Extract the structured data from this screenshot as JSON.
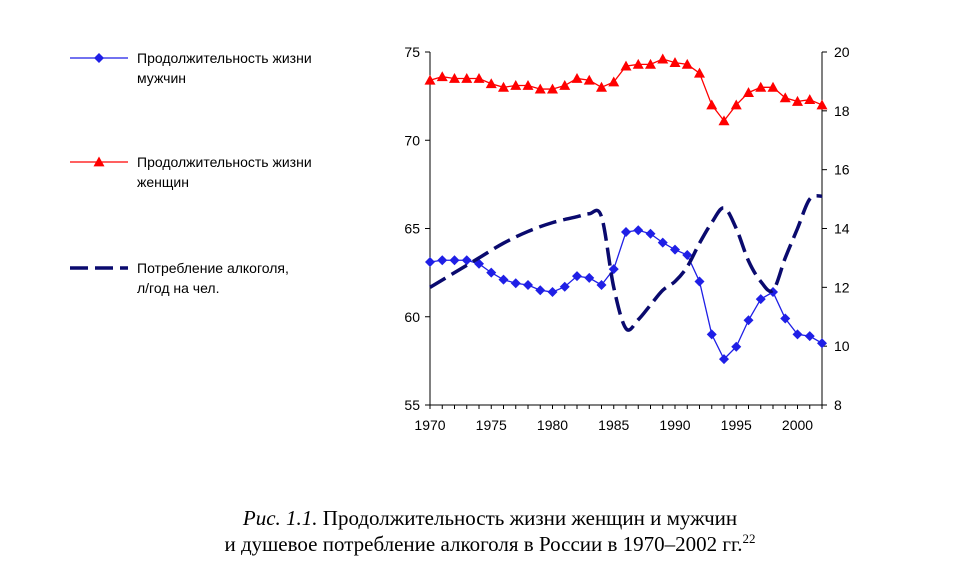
{
  "chart_data": {
    "type": "line",
    "x_ticks": [
      1970,
      1975,
      1980,
      1985,
      1990,
      1995,
      2000
    ],
    "xlim": [
      1970,
      2002
    ],
    "y_left": {
      "ticks": [
        55,
        60,
        65,
        70,
        75
      ],
      "ylim": [
        55,
        75
      ]
    },
    "y_right": {
      "ticks": [
        8,
        10,
        12,
        14,
        16,
        18,
        20
      ],
      "ylim": [
        8,
        20
      ]
    },
    "grid": false,
    "legend_position": "left",
    "series": [
      {
        "name": "Продолжительность жизни мужчин",
        "legend_lines": [
          "Продолжительность жизни",
          "мужчин"
        ],
        "axis": "left",
        "color": "#1f1fe6",
        "marker": "diamond",
        "dashed": false,
        "x": [
          1970,
          1971,
          1972,
          1973,
          1974,
          1975,
          1976,
          1977,
          1978,
          1979,
          1980,
          1981,
          1982,
          1983,
          1984,
          1985,
          1986,
          1987,
          1988,
          1989,
          1990,
          1991,
          1992,
          1993,
          1994,
          1995,
          1996,
          1997,
          1998,
          1999,
          2000,
          2001,
          2002
        ],
        "y": [
          63.1,
          63.2,
          63.2,
          63.2,
          63.0,
          62.5,
          62.1,
          61.9,
          61.8,
          61.5,
          61.4,
          61.7,
          62.3,
          62.2,
          61.8,
          62.7,
          64.8,
          64.9,
          64.7,
          64.2,
          63.8,
          63.5,
          62.0,
          59.0,
          57.6,
          58.3,
          59.8,
          61.0,
          61.4,
          59.9,
          59.0,
          58.9,
          58.5
        ]
      },
      {
        "name": "Продолжительность жизни женщин",
        "legend_lines": [
          "Продолжительность жизни",
          "женщин"
        ],
        "axis": "left",
        "color": "#ff0000",
        "marker": "triangle",
        "dashed": false,
        "x": [
          1970,
          1971,
          1972,
          1973,
          1974,
          1975,
          1976,
          1977,
          1978,
          1979,
          1980,
          1981,
          1982,
          1983,
          1984,
          1985,
          1986,
          1987,
          1988,
          1989,
          1990,
          1991,
          1992,
          1993,
          1994,
          1995,
          1996,
          1997,
          1998,
          1999,
          2000,
          2001,
          2002
        ],
        "y": [
          73.4,
          73.6,
          73.5,
          73.5,
          73.5,
          73.2,
          73.0,
          73.1,
          73.1,
          72.9,
          72.9,
          73.1,
          73.5,
          73.4,
          73.0,
          73.3,
          74.2,
          74.3,
          74.3,
          74.6,
          74.4,
          74.3,
          73.8,
          72.0,
          71.1,
          72.0,
          72.7,
          73.0,
          73.0,
          72.4,
          72.2,
          72.3,
          72.0
        ]
      },
      {
        "name": "Потребление алкоголя, л/год на чел.",
        "legend_lines": [
          "Потребление алкоголя,",
          "л/год на чел."
        ],
        "axis": "right",
        "color": "#0a0a6e",
        "marker": "none",
        "dashed": true,
        "x": [
          1970,
          1972,
          1974,
          1976,
          1978,
          1980,
          1982,
          1983,
          1984,
          1985,
          1986,
          1987,
          1988,
          1989,
          1990,
          1991,
          1992,
          1993,
          1994,
          1995,
          1996,
          1997,
          1998,
          1999,
          2000,
          2001,
          2002
        ],
        "y": [
          12.0,
          12.5,
          13.0,
          13.5,
          13.9,
          14.2,
          14.4,
          14.5,
          14.4,
          12.0,
          10.6,
          10.9,
          11.4,
          11.9,
          12.2,
          12.7,
          13.5,
          14.2,
          14.7,
          14.0,
          12.9,
          12.2,
          11.9,
          13.0,
          14.0,
          15.0,
          15.1
        ]
      }
    ]
  },
  "caption": {
    "prefix": "Рис. 1.1.",
    "line1": " Продолжительность жизни женщин и мужчин",
    "line2": "и душевое потребление алкоголя в России в 1970–2002 гг.",
    "footnote": "22"
  }
}
